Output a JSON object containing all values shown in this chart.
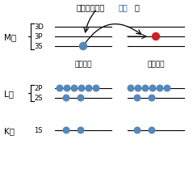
{
  "bg_color": "#ffffff",
  "electron_color_blue": "#5588bb",
  "electron_color_red": "#cc2222",
  "kisoku_label": "基底状態",
  "reiki_label": "励起状態",
  "M_label": "M殻",
  "L_label": "L殻",
  "K_label": "K殻",
  "levels_M": [
    "3D",
    "3P",
    "3S"
  ],
  "levels_L": [
    "2P",
    "2S"
  ],
  "levels_K": [
    "1S"
  ],
  "energy_text1": "エネルギー（",
  "energy_text2": "吸光",
  "energy_text3": "）",
  "font_size_shell": 7.5,
  "font_size_level": 6.0,
  "font_size_state": 6.5,
  "font_size_energy": 7.0
}
